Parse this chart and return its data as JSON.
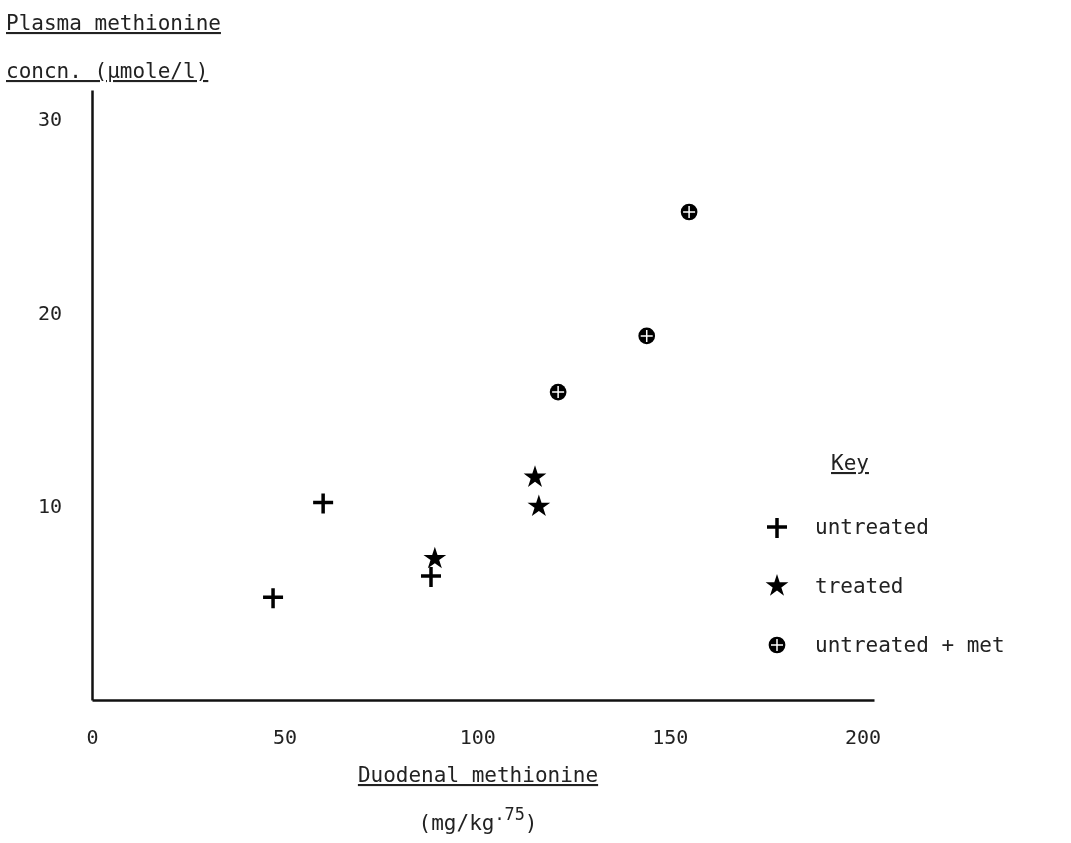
{
  "chart_data": {
    "type": "scatter",
    "ylabel": "Plasma methionine\nconcn. (μmole/l)",
    "xlabel": "Duodenal methionine\n(mg/kg$^{.75}$)",
    "legend_title": "Key",
    "legend": "right",
    "grid": false,
    "xlim": [
      0,
      203
    ],
    "xticks": [
      0,
      50,
      100,
      150,
      200
    ],
    "ylim": [
      0,
      31.5
    ],
    "yticks": [
      10,
      20,
      30
    ],
    "series": [
      {
        "name": "untreated",
        "color": "#000000",
        "marker": "cross",
        "x": [
          47,
          60,
          88
        ],
        "values": [
          5.3,
          10.2,
          6.4
        ]
      },
      {
        "name": "treated",
        "color": "#000000",
        "marker": "star",
        "x": [
          89,
          115,
          116
        ],
        "values": [
          7.3,
          11.5,
          10.0
        ]
      },
      {
        "name": "untreated + met",
        "color": "#000000",
        "marker": "circle",
        "x": [
          121,
          144,
          155
        ],
        "values": [
          15.9,
          18.8,
          25.2
        ]
      }
    ]
  }
}
